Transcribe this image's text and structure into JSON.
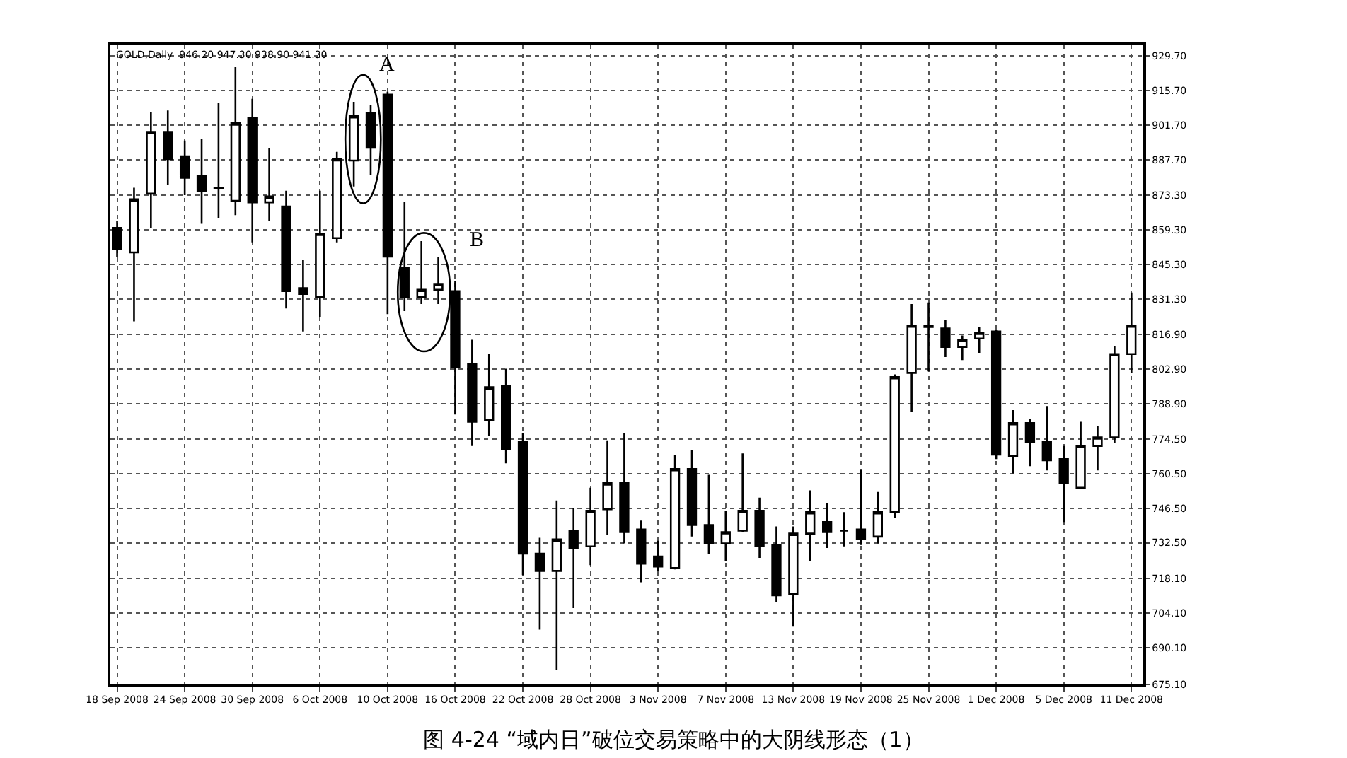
{
  "chart_data": {
    "type": "candlestick",
    "title": "图 4-24 “域内日”破位交易策略中的大阴线形态（1）",
    "categories": [
      "18 Sep 2008",
      null,
      null,
      null,
      "24 Sep 2008",
      null,
      null,
      null,
      "30 Sep 2008",
      null,
      null,
      null,
      "6 Oct 2008",
      null,
      null,
      null,
      "10 Oct 2008",
      null,
      null,
      null,
      "16 Oct 2008",
      null,
      null,
      null,
      "22 Oct 2008",
      null,
      null,
      null,
      "28 Oct 2008",
      null,
      null,
      null,
      "3 Nov 2008",
      null,
      null,
      null,
      "7 Nov 2008",
      null,
      null,
      null,
      "13 Nov 2008",
      null,
      null,
      null,
      "19 Nov 2008",
      null,
      null,
      null,
      "25 Nov 2008",
      null,
      null,
      null,
      "1 Dec 2008",
      null,
      null,
      null,
      "5 Dec 2008",
      null,
      null,
      null,
      "11 Dec 2008"
    ],
    "ohlc": [
      [
        860.0,
        862.9,
        848.4,
        851.3
      ],
      [
        850.1,
        876.3,
        822.2,
        871.6
      ],
      [
        873.9,
        907.0,
        860.0,
        898.9
      ],
      [
        898.9,
        907.6,
        877.4,
        887.9
      ],
      [
        889.0,
        895.4,
        873.3,
        880.3
      ],
      [
        880.9,
        896.0,
        861.7,
        875.1
      ],
      [
        876.3,
        910.5,
        864.0,
        876.0
      ],
      [
        871.0,
        925.1,
        865.2,
        902.4
      ],
      [
        904.7,
        912.3,
        854.2,
        870.4
      ],
      [
        870.4,
        892.5,
        862.9,
        872.8
      ],
      [
        868.7,
        875.1,
        827.4,
        834.4
      ],
      [
        835.6,
        847.2,
        818.1,
        833.3
      ],
      [
        832.1,
        875.1,
        823.9,
        857.7
      ],
      [
        855.9,
        890.8,
        854.2,
        887.9
      ],
      [
        887.3,
        911.1,
        876.8,
        905.3
      ],
      [
        906.5,
        909.9,
        881.5,
        892.5
      ],
      [
        914.0,
        915.2,
        825.1,
        848.4
      ],
      [
        843.7,
        870.4,
        826.3,
        832.1
      ],
      [
        832.1,
        854.7,
        829.2,
        835.0
      ],
      [
        835.0,
        848.4,
        829.2,
        837.3
      ],
      [
        834.4,
        838.5,
        784.4,
        803.6
      ],
      [
        804.8,
        814.7,
        771.7,
        781.5
      ],
      [
        782.1,
        808.9,
        775.7,
        795.5
      ],
      [
        796.1,
        803.0,
        764.7,
        770.5
      ],
      [
        773.4,
        776.9,
        719.4,
        728.1
      ],
      [
        728.1,
        734.5,
        697.3,
        721.1
      ],
      [
        721.1,
        749.6,
        681.0,
        733.9
      ],
      [
        737.4,
        746.7,
        706.0,
        730.4
      ],
      [
        731.0,
        754.8,
        723.4,
        745.5
      ],
      [
        746.1,
        774.0,
        735.6,
        756.6
      ],
      [
        756.6,
        776.9,
        732.2,
        736.8
      ],
      [
        737.9,
        741.5,
        716.5,
        724.0
      ],
      [
        726.9,
        733.3,
        721.1,
        722.9
      ],
      [
        722.3,
        768.2,
        721.7,
        762.4
      ],
      [
        762.4,
        769.9,
        735.0,
        739.7
      ],
      [
        739.7,
        760.0,
        728.1,
        732.2
      ],
      [
        732.2,
        745.5,
        725.2,
        736.8
      ],
      [
        737.4,
        768.7,
        736.8,
        745.5
      ],
      [
        745.5,
        750.8,
        726.4,
        731.0
      ],
      [
        731.6,
        739.1,
        708.4,
        711.2
      ],
      [
        711.8,
        739.1,
        698.5,
        736.2
      ],
      [
        736.2,
        753.7,
        725.2,
        744.9
      ],
      [
        740.9,
        748.4,
        730.4,
        736.8
      ],
      [
        737.4,
        744.9,
        731.0,
        737.4
      ],
      [
        737.9,
        762.4,
        731.6,
        733.9
      ],
      [
        735.0,
        753.1,
        732.2,
        744.9
      ],
      [
        744.9,
        800.7,
        742.6,
        799.6
      ],
      [
        801.3,
        829.2,
        785.6,
        820.5
      ],
      [
        820.5,
        829.8,
        801.9,
        819.9
      ],
      [
        819.3,
        822.8,
        807.7,
        811.8
      ],
      [
        811.8,
        816.4,
        806.5,
        814.7
      ],
      [
        815.2,
        819.9,
        809.4,
        817.6
      ],
      [
        818.1,
        818.7,
        766.4,
        768.2
      ],
      [
        767.6,
        786.2,
        760.6,
        781.0
      ],
      [
        781.0,
        782.7,
        763.5,
        773.4
      ],
      [
        773.4,
        787.9,
        761.8,
        765.9
      ],
      [
        766.4,
        771.7,
        740.9,
        756.6
      ],
      [
        754.8,
        781.5,
        754.2,
        771.7
      ],
      [
        771.7,
        779.8,
        761.8,
        775.2
      ],
      [
        775.2,
        812.3,
        772.8,
        808.9
      ],
      [
        808.9,
        833.8,
        801.3,
        820.5
      ]
    ],
    "ylim": [
      675.1,
      934.0
    ],
    "yticks": [
      {
        "value": 929.7,
        "label": "929.70"
      },
      {
        "value": 915.7,
        "label": "915.70"
      },
      {
        "value": 901.7,
        "label": "901.70"
      },
      {
        "value": 887.7,
        "label": "887.70"
      },
      {
        "value": 873.3,
        "label": "873.30"
      },
      {
        "value": 859.3,
        "label": "859.30"
      },
      {
        "value": 845.3,
        "label": "845.30"
      },
      {
        "value": 831.3,
        "label": "831.30"
      },
      {
        "value": 816.9,
        "label": "816.90"
      },
      {
        "value": 802.9,
        "label": "802.90"
      },
      {
        "value": 788.9,
        "label": "788.90"
      },
      {
        "value": 774.5,
        "label": "774.50"
      },
      {
        "value": 760.5,
        "label": "760.50"
      },
      {
        "value": 746.5,
        "label": "746.50"
      },
      {
        "value": 732.5,
        "label": "732.50"
      },
      {
        "value": 718.1,
        "label": "718.10"
      },
      {
        "value": 704.1,
        "label": "704.10"
      },
      {
        "value": 690.1,
        "label": "690.10"
      },
      {
        "value": 675.1,
        "label": "675.10"
      }
    ],
    "annotations": [
      "GOLD,Daily  946.20 947.30 938.90 941.30",
      "A",
      "B"
    ],
    "grid": true,
    "legend": false
  }
}
